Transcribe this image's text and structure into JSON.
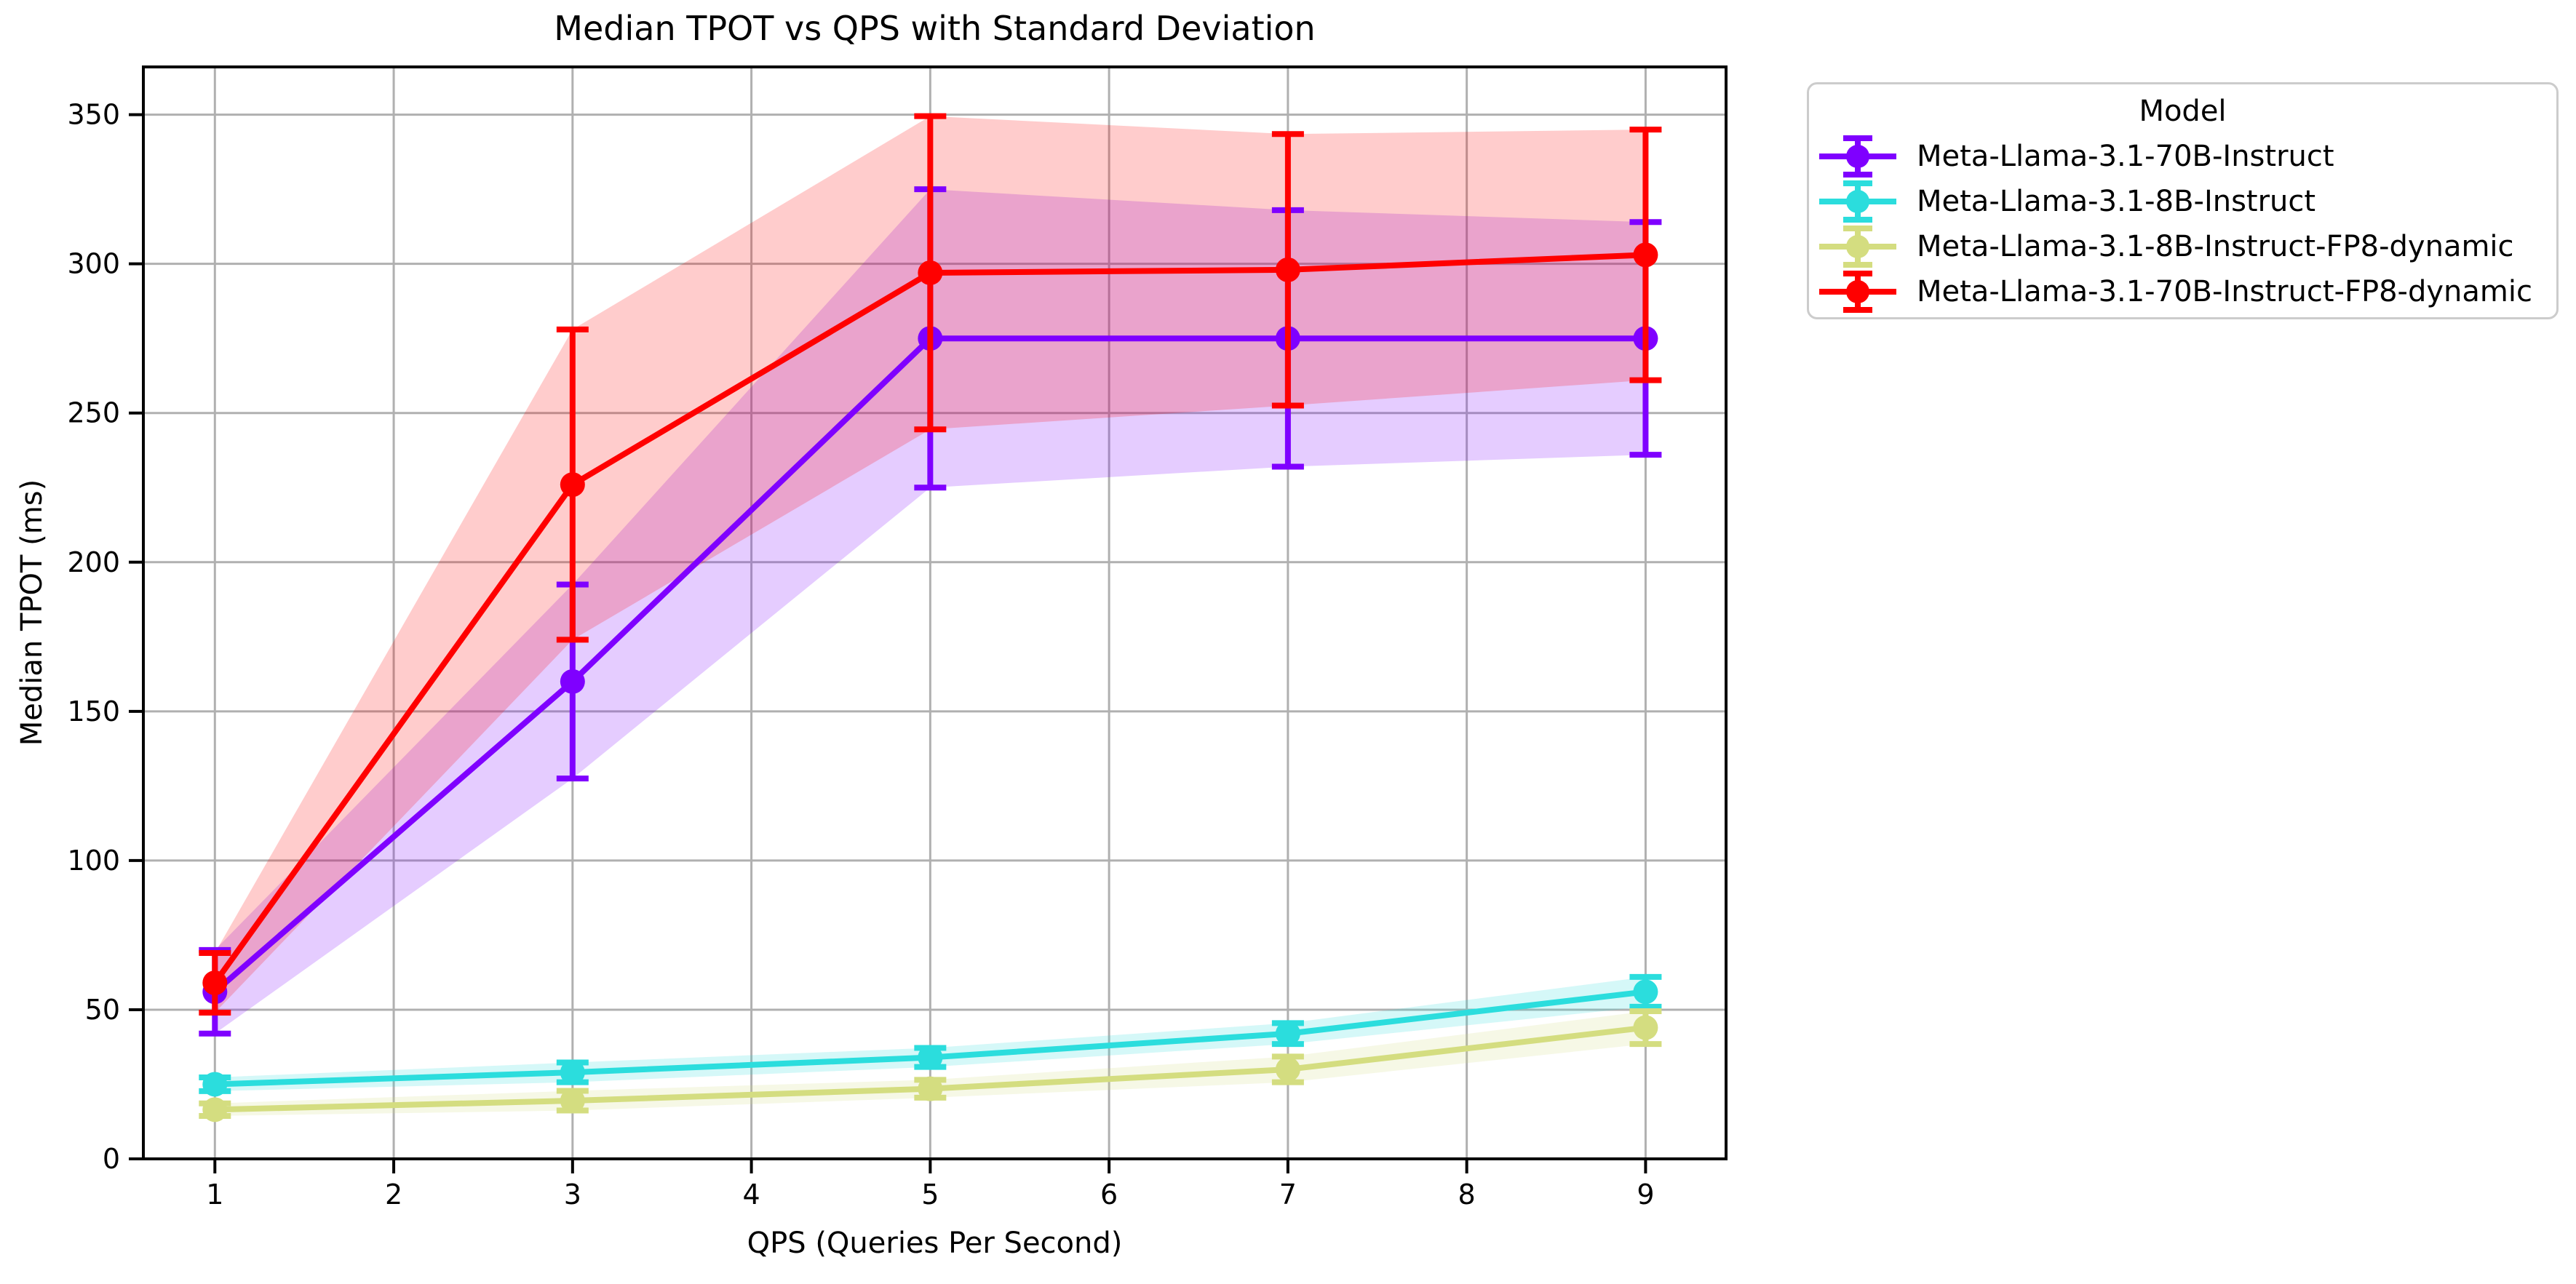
{
  "figure": {
    "title": "Median TPOT vs QPS with Standard Deviation",
    "x_axis_label": "QPS (Queries Per Second)",
    "y_axis_label": "Median TPOT (ms)",
    "background_color": "#ffffff",
    "grid_color": "#b0b0b0",
    "spine_color": "#000000"
  },
  "legend": {
    "title": "Model",
    "entries": [
      {
        "label": "Meta-Llama-3.1-70B-Instruct",
        "color": "#7f00ff"
      },
      {
        "label": "Meta-Llama-3.1-8B-Instruct",
        "color": "#2bdddd"
      },
      {
        "label": "Meta-Llama-3.1-8B-Instruct-FP8-dynamic",
        "color": "#d4dd80"
      },
      {
        "label": "Meta-Llama-3.1-70B-Instruct-FP8-dynamic",
        "color": "#ff0000"
      }
    ]
  },
  "chart_data": {
    "type": "line",
    "title": "Median TPOT vs QPS with Standard Deviation",
    "xlabel": "QPS (Queries Per Second)",
    "ylabel": "Median TPOT (ms)",
    "x": [
      1,
      3,
      5,
      7,
      9
    ],
    "x_ticks": [
      1,
      2,
      3,
      4,
      5,
      6,
      7,
      8,
      9
    ],
    "y_ticks": [
      0,
      50,
      100,
      150,
      200,
      250,
      300,
      350
    ],
    "xlim": [
      0.6,
      9.45
    ],
    "ylim": [
      0,
      366
    ],
    "grid": true,
    "legend_position": "outside upper right",
    "error_style": "errorbar with caps plus shaded mean±std band (fill alpha 0.2)",
    "series": [
      {
        "name": "Meta-Llama-3.1-70B-Instruct",
        "color": "#7f00ff",
        "median_tpot_ms": [
          56,
          160,
          275,
          275,
          275
        ],
        "std": [
          14,
          32.5,
          50,
          43,
          39
        ]
      },
      {
        "name": "Meta-Llama-3.1-8B-Instruct",
        "color": "#2bdddd",
        "median_tpot_ms": [
          25,
          29,
          34,
          42,
          56
        ],
        "std": [
          2.3,
          3.3,
          3.2,
          3.5,
          5
        ]
      },
      {
        "name": "Meta-Llama-3.1-8B-Instruct-FP8-dynamic",
        "color": "#d4dd80",
        "median_tpot_ms": [
          16.5,
          19.5,
          23.5,
          30,
          44
        ],
        "std": [
          2.1,
          3.3,
          3.0,
          4.3,
          5.5
        ]
      },
      {
        "name": "Meta-Llama-3.1-70B-Instruct-FP8-dynamic",
        "color": "#ff0000",
        "median_tpot_ms": [
          59,
          226,
          297,
          298,
          303
        ],
        "std": [
          10,
          52,
          52.5,
          45.5,
          42
        ]
      }
    ]
  }
}
